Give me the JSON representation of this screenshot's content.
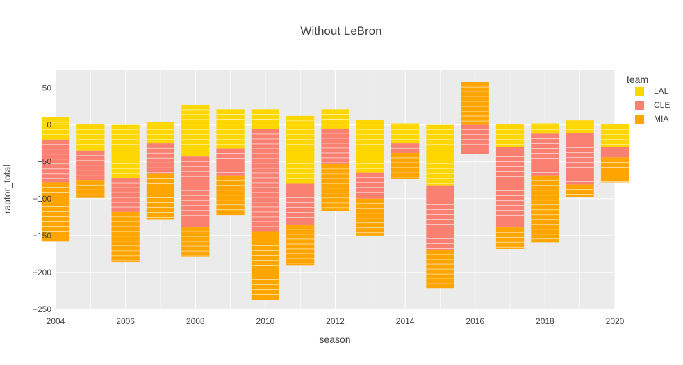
{
  "chart_data": {
    "type": "bar",
    "barmode": "relative",
    "title": "Without LeBron",
    "xlabel": "season",
    "ylabel": "raptor_total",
    "xlim": [
      2004,
      2020
    ],
    "ylim": [
      -250,
      75
    ],
    "x_ticks": [
      2004,
      2006,
      2008,
      2010,
      2012,
      2014,
      2016,
      2018,
      2020
    ],
    "y_ticks": [
      50,
      0,
      -50,
      -100,
      -150,
      -200,
      -250
    ],
    "y_tick_labels": [
      "50",
      "0",
      "−50",
      "−100",
      "−150",
      "−200",
      "−250"
    ],
    "grid": true,
    "legend": {
      "title": "team",
      "placement": "top-right",
      "entries": [
        "LAL",
        "CLE",
        "MIA"
      ]
    },
    "colors": {
      "LAL": "#FFD700",
      "CLE": "#FA8072",
      "MIA": "#FFA500",
      "plot_bg": "#EBEBEB"
    },
    "series": [
      {
        "name": "LAL",
        "pos": [
          10,
          1,
          0,
          4,
          27,
          21,
          21,
          12,
          21,
          7,
          2,
          0,
          0,
          1,
          2,
          6,
          1
        ],
        "neg": [
          -20,
          -35,
          -72,
          -25,
          -43,
          -32,
          -6,
          -79,
          -5,
          -65,
          -25,
          -82,
          0,
          -30,
          -12,
          -11,
          -30
        ]
      },
      {
        "name": "CLE",
        "pos": [
          0,
          0,
          0,
          0,
          0,
          0,
          0,
          0,
          0,
          0,
          0,
          0,
          0,
          0,
          0,
          0,
          0
        ],
        "neg": [
          -58,
          -40,
          -46,
          -41,
          -95,
          -37,
          -138,
          -56,
          -48,
          -35,
          -13,
          -87,
          -39,
          -109,
          -57,
          -70,
          -14
        ]
      },
      {
        "name": "MIA",
        "pos": [
          0,
          0,
          0,
          0,
          0,
          0,
          0,
          0,
          0,
          0,
          0,
          0,
          58,
          0,
          0,
          0,
          0
        ],
        "neg": [
          -80,
          -24,
          -68,
          -62,
          -41,
          -53,
          -93,
          -55,
          -64,
          -50,
          -35,
          -52,
          0,
          -29,
          -90,
          -17,
          -34
        ]
      }
    ]
  }
}
